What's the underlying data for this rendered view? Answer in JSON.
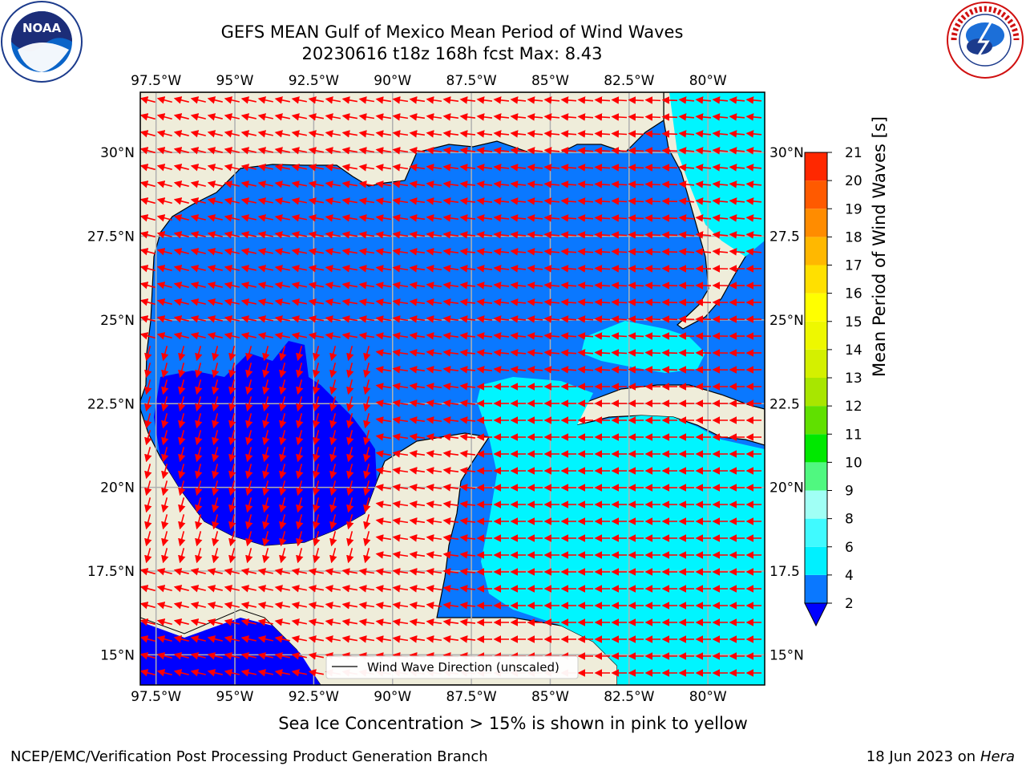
{
  "title_line1": "GEFS MEAN Gulf of Mexico Mean Period of Wind Waves",
  "title_line2": "20230616 t18z 168h fcst   Max: 8.43",
  "x_ticks": [
    "97.5°W",
    "95°W",
    "92.5°W",
    "90°W",
    "87.5°W",
    "85°W",
    "82.5°W",
    "80°W"
  ],
  "x_tick_values": [
    -97.5,
    -95,
    -92.5,
    -90,
    -87.5,
    -85,
    -82.5,
    -80
  ],
  "y_ticks": [
    "30°N",
    "27.5°N",
    "25°N",
    "22.5°N",
    "20°N",
    "17.5°N",
    "15°N"
  ],
  "y_ticks_right": [
    "30°N",
    "27.5",
    "25°N",
    "22.5",
    "20°N",
    "17.5",
    "15°N"
  ],
  "y_tick_values": [
    30,
    27.5,
    25,
    22.5,
    20,
    17.5,
    15
  ],
  "lon_range": [
    -98,
    -78.2
  ],
  "lat_range": [
    14.1,
    31.8
  ],
  "legend_label": "Wind Wave Direction (unscaled)",
  "colorbar": {
    "label": "Mean Period of Wind Waves [s]",
    "tick_labels": [
      "2",
      "4",
      "6",
      "8",
      "9",
      "10",
      "11",
      "12",
      "13",
      "14",
      "15",
      "16",
      "17",
      "18",
      "19",
      "20",
      "21"
    ],
    "colors": [
      "#0a78ff",
      "#00f0ff",
      "#40faff",
      "#a0fff5",
      "#50f880",
      "#00e800",
      "#60e000",
      "#a8e600",
      "#d4f000",
      "#eef800",
      "#ffff00",
      "#ffe000",
      "#ffb800",
      "#ff8c00",
      "#ff5a00",
      "#ff2800"
    ],
    "extend_low_color": "#0000ff"
  },
  "subtitle": "Sea Ice Concentration > 15% is shown in pink to yellow",
  "footer_left": "NCEP/EMC/Verification Post Processing Product Generation Branch",
  "footer_date": "18 Jun 2023 on",
  "footer_machine": "Hera",
  "colors": {
    "land": "#efedda",
    "water_mid": "#0a78ff",
    "water_low": "#0000ff",
    "water_high": "#00f5ff",
    "arrow": "#ff0000",
    "grid": "#b0b0b0"
  },
  "logos": {
    "left": "noaa-logo",
    "right": "nws-logo",
    "noaa_text": "NOAA",
    "nws_text": "NATIONAL WEATHER SERVICE"
  }
}
